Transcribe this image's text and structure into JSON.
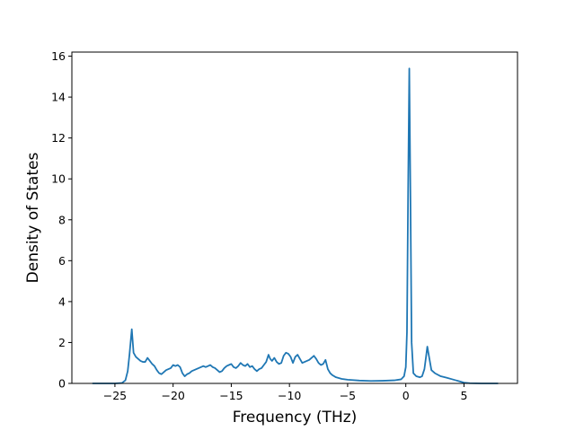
{
  "chart_data": {
    "type": "line",
    "title": "",
    "xlabel": "Frequency (THz)",
    "ylabel": "Density of States",
    "xlim": [
      -28.7,
      9.6
    ],
    "ylim": [
      0,
      16.2
    ],
    "xticks": [
      -25,
      -20,
      -15,
      -10,
      -5,
      0,
      5
    ],
    "xtick_labels": [
      "−25",
      "−20",
      "−15",
      "−10",
      "−5",
      "0",
      "5"
    ],
    "yticks": [
      0,
      2,
      4,
      6,
      8,
      10,
      12,
      14,
      16
    ],
    "ytick_labels": [
      "0",
      "2",
      "4",
      "6",
      "8",
      "10",
      "12",
      "14",
      "16"
    ],
    "grid": false,
    "legend": "none",
    "series": [
      {
        "color": "#1f77b4",
        "points": [
          [
            -26.9,
            0.0
          ],
          [
            -25.0,
            0.0
          ],
          [
            -24.4,
            0.02
          ],
          [
            -24.1,
            0.15
          ],
          [
            -23.9,
            0.6
          ],
          [
            -23.75,
            1.4
          ],
          [
            -23.55,
            2.65
          ],
          [
            -23.4,
            1.5
          ],
          [
            -23.2,
            1.3
          ],
          [
            -23.0,
            1.2
          ],
          [
            -22.8,
            1.1
          ],
          [
            -22.6,
            1.05
          ],
          [
            -22.4,
            1.05
          ],
          [
            -22.2,
            1.25
          ],
          [
            -22.0,
            1.1
          ],
          [
            -21.8,
            0.95
          ],
          [
            -21.6,
            0.85
          ],
          [
            -21.4,
            0.65
          ],
          [
            -21.2,
            0.5
          ],
          [
            -21.0,
            0.45
          ],
          [
            -20.8,
            0.55
          ],
          [
            -20.6,
            0.65
          ],
          [
            -20.4,
            0.7
          ],
          [
            -20.2,
            0.75
          ],
          [
            -20.0,
            0.9
          ],
          [
            -19.8,
            0.85
          ],
          [
            -19.6,
            0.9
          ],
          [
            -19.4,
            0.8
          ],
          [
            -19.2,
            0.5
          ],
          [
            -19.0,
            0.35
          ],
          [
            -18.8,
            0.45
          ],
          [
            -18.6,
            0.5
          ],
          [
            -18.4,
            0.6
          ],
          [
            -18.2,
            0.65
          ],
          [
            -18.0,
            0.7
          ],
          [
            -17.8,
            0.75
          ],
          [
            -17.6,
            0.8
          ],
          [
            -17.4,
            0.85
          ],
          [
            -17.2,
            0.8
          ],
          [
            -17.0,
            0.85
          ],
          [
            -16.8,
            0.9
          ],
          [
            -16.6,
            0.8
          ],
          [
            -16.4,
            0.75
          ],
          [
            -16.2,
            0.65
          ],
          [
            -16.0,
            0.55
          ],
          [
            -15.8,
            0.6
          ],
          [
            -15.6,
            0.75
          ],
          [
            -15.4,
            0.85
          ],
          [
            -15.2,
            0.9
          ],
          [
            -15.0,
            0.95
          ],
          [
            -14.8,
            0.8
          ],
          [
            -14.6,
            0.75
          ],
          [
            -14.4,
            0.85
          ],
          [
            -14.2,
            1.0
          ],
          [
            -14.0,
            0.9
          ],
          [
            -13.8,
            0.85
          ],
          [
            -13.6,
            0.95
          ],
          [
            -13.4,
            0.8
          ],
          [
            -13.2,
            0.85
          ],
          [
            -13.0,
            0.7
          ],
          [
            -12.8,
            0.6
          ],
          [
            -12.6,
            0.7
          ],
          [
            -12.4,
            0.75
          ],
          [
            -12.2,
            0.9
          ],
          [
            -12.0,
            1.05
          ],
          [
            -11.8,
            1.4
          ],
          [
            -11.65,
            1.2
          ],
          [
            -11.5,
            1.1
          ],
          [
            -11.3,
            1.25
          ],
          [
            -11.1,
            1.05
          ],
          [
            -10.9,
            0.95
          ],
          [
            -10.7,
            1.0
          ],
          [
            -10.5,
            1.35
          ],
          [
            -10.3,
            1.5
          ],
          [
            -10.1,
            1.45
          ],
          [
            -9.9,
            1.3
          ],
          [
            -9.7,
            1.0
          ],
          [
            -9.5,
            1.3
          ],
          [
            -9.3,
            1.4
          ],
          [
            -9.1,
            1.2
          ],
          [
            -8.9,
            1.0
          ],
          [
            -8.7,
            1.05
          ],
          [
            -8.5,
            1.1
          ],
          [
            -8.3,
            1.15
          ],
          [
            -8.1,
            1.25
          ],
          [
            -7.9,
            1.35
          ],
          [
            -7.7,
            1.2
          ],
          [
            -7.5,
            1.0
          ],
          [
            -7.3,
            0.9
          ],
          [
            -7.1,
            0.95
          ],
          [
            -6.9,
            1.15
          ],
          [
            -6.7,
            0.7
          ],
          [
            -6.5,
            0.5
          ],
          [
            -6.3,
            0.4
          ],
          [
            -6.0,
            0.3
          ],
          [
            -5.5,
            0.22
          ],
          [
            -5.0,
            0.18
          ],
          [
            -4.0,
            0.14
          ],
          [
            -3.0,
            0.12
          ],
          [
            -2.0,
            0.13
          ],
          [
            -1.0,
            0.15
          ],
          [
            -0.4,
            0.2
          ],
          [
            -0.15,
            0.35
          ],
          [
            0.0,
            0.8
          ],
          [
            0.1,
            2.5
          ],
          [
            0.2,
            9.5
          ],
          [
            0.3,
            15.4
          ],
          [
            0.4,
            9.0
          ],
          [
            0.5,
            2.0
          ],
          [
            0.65,
            0.5
          ],
          [
            0.9,
            0.35
          ],
          [
            1.2,
            0.3
          ],
          [
            1.4,
            0.35
          ],
          [
            1.6,
            0.7
          ],
          [
            1.75,
            1.35
          ],
          [
            1.85,
            1.8
          ],
          [
            2.0,
            1.3
          ],
          [
            2.2,
            0.65
          ],
          [
            2.5,
            0.5
          ],
          [
            3.0,
            0.35
          ],
          [
            3.5,
            0.28
          ],
          [
            4.0,
            0.2
          ],
          [
            4.5,
            0.12
          ],
          [
            5.0,
            0.04
          ],
          [
            5.5,
            0.01
          ],
          [
            6.5,
            0.0
          ],
          [
            7.9,
            0.0
          ]
        ]
      }
    ]
  }
}
